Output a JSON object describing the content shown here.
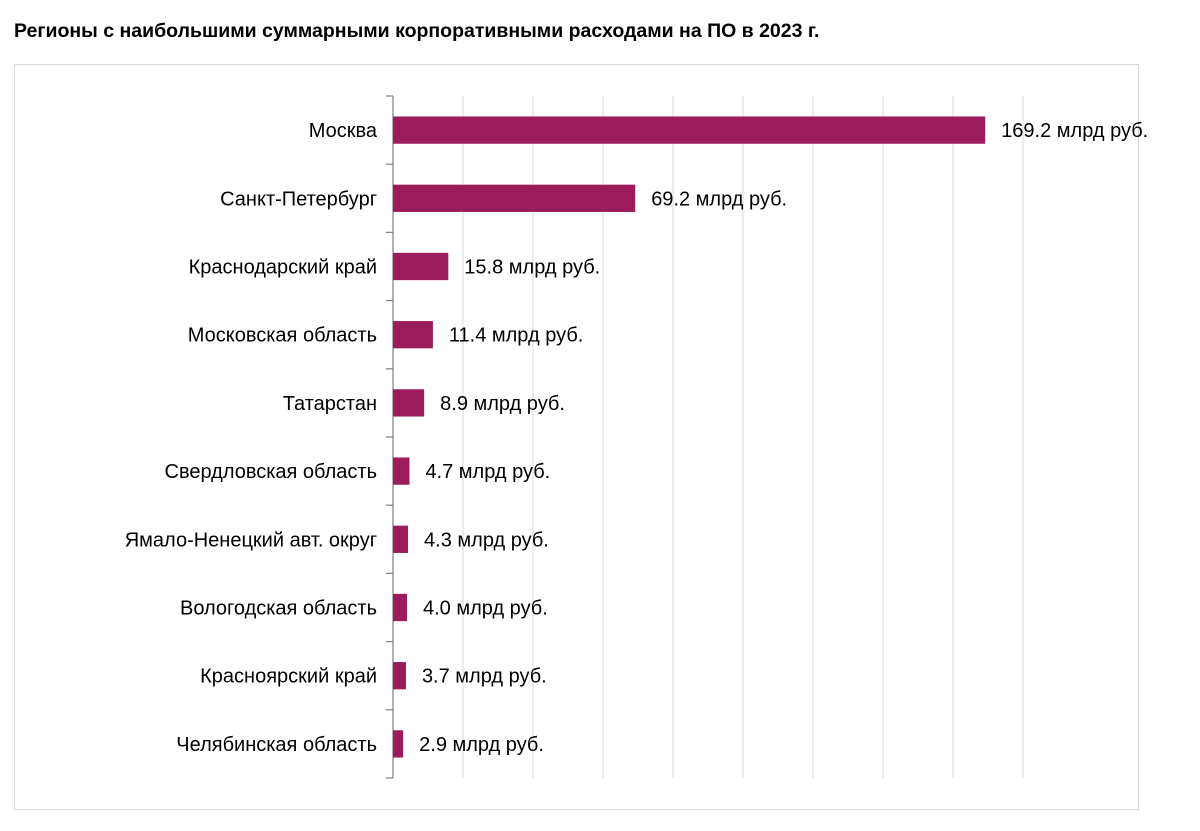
{
  "chart_data": {
    "type": "bar",
    "orientation": "horizontal",
    "title": "Регионы с наибольшими суммарными корпоративными расходами на ПО в 2023 г.",
    "categories": [
      "Москва",
      "Санкт-Петербург",
      "Краснодарский край",
      "Московская область",
      "Татарстан",
      "Свердловская область",
      "Ямало-Ненецкий авт. округ",
      "Вологодская область",
      "Красноярский край",
      "Челябинская область"
    ],
    "values": [
      169.2,
      69.2,
      15.8,
      11.4,
      8.9,
      4.7,
      4.3,
      4.0,
      3.7,
      2.9
    ],
    "data_labels": [
      "169.2 млрд руб.",
      "69.2 млрд руб.",
      "15.8 млрд руб.",
      "11.4 млрд руб.",
      "8.9 млрд руб.",
      "4.7 млрд руб.",
      "4.3 млрд руб.",
      "4.0 млрд руб.",
      "3.7 млрд руб.",
      "2.9 млрд руб."
    ],
    "xlim": [
      0,
      180
    ],
    "grid": true,
    "legend": "none",
    "color": "#9b1b5d"
  }
}
